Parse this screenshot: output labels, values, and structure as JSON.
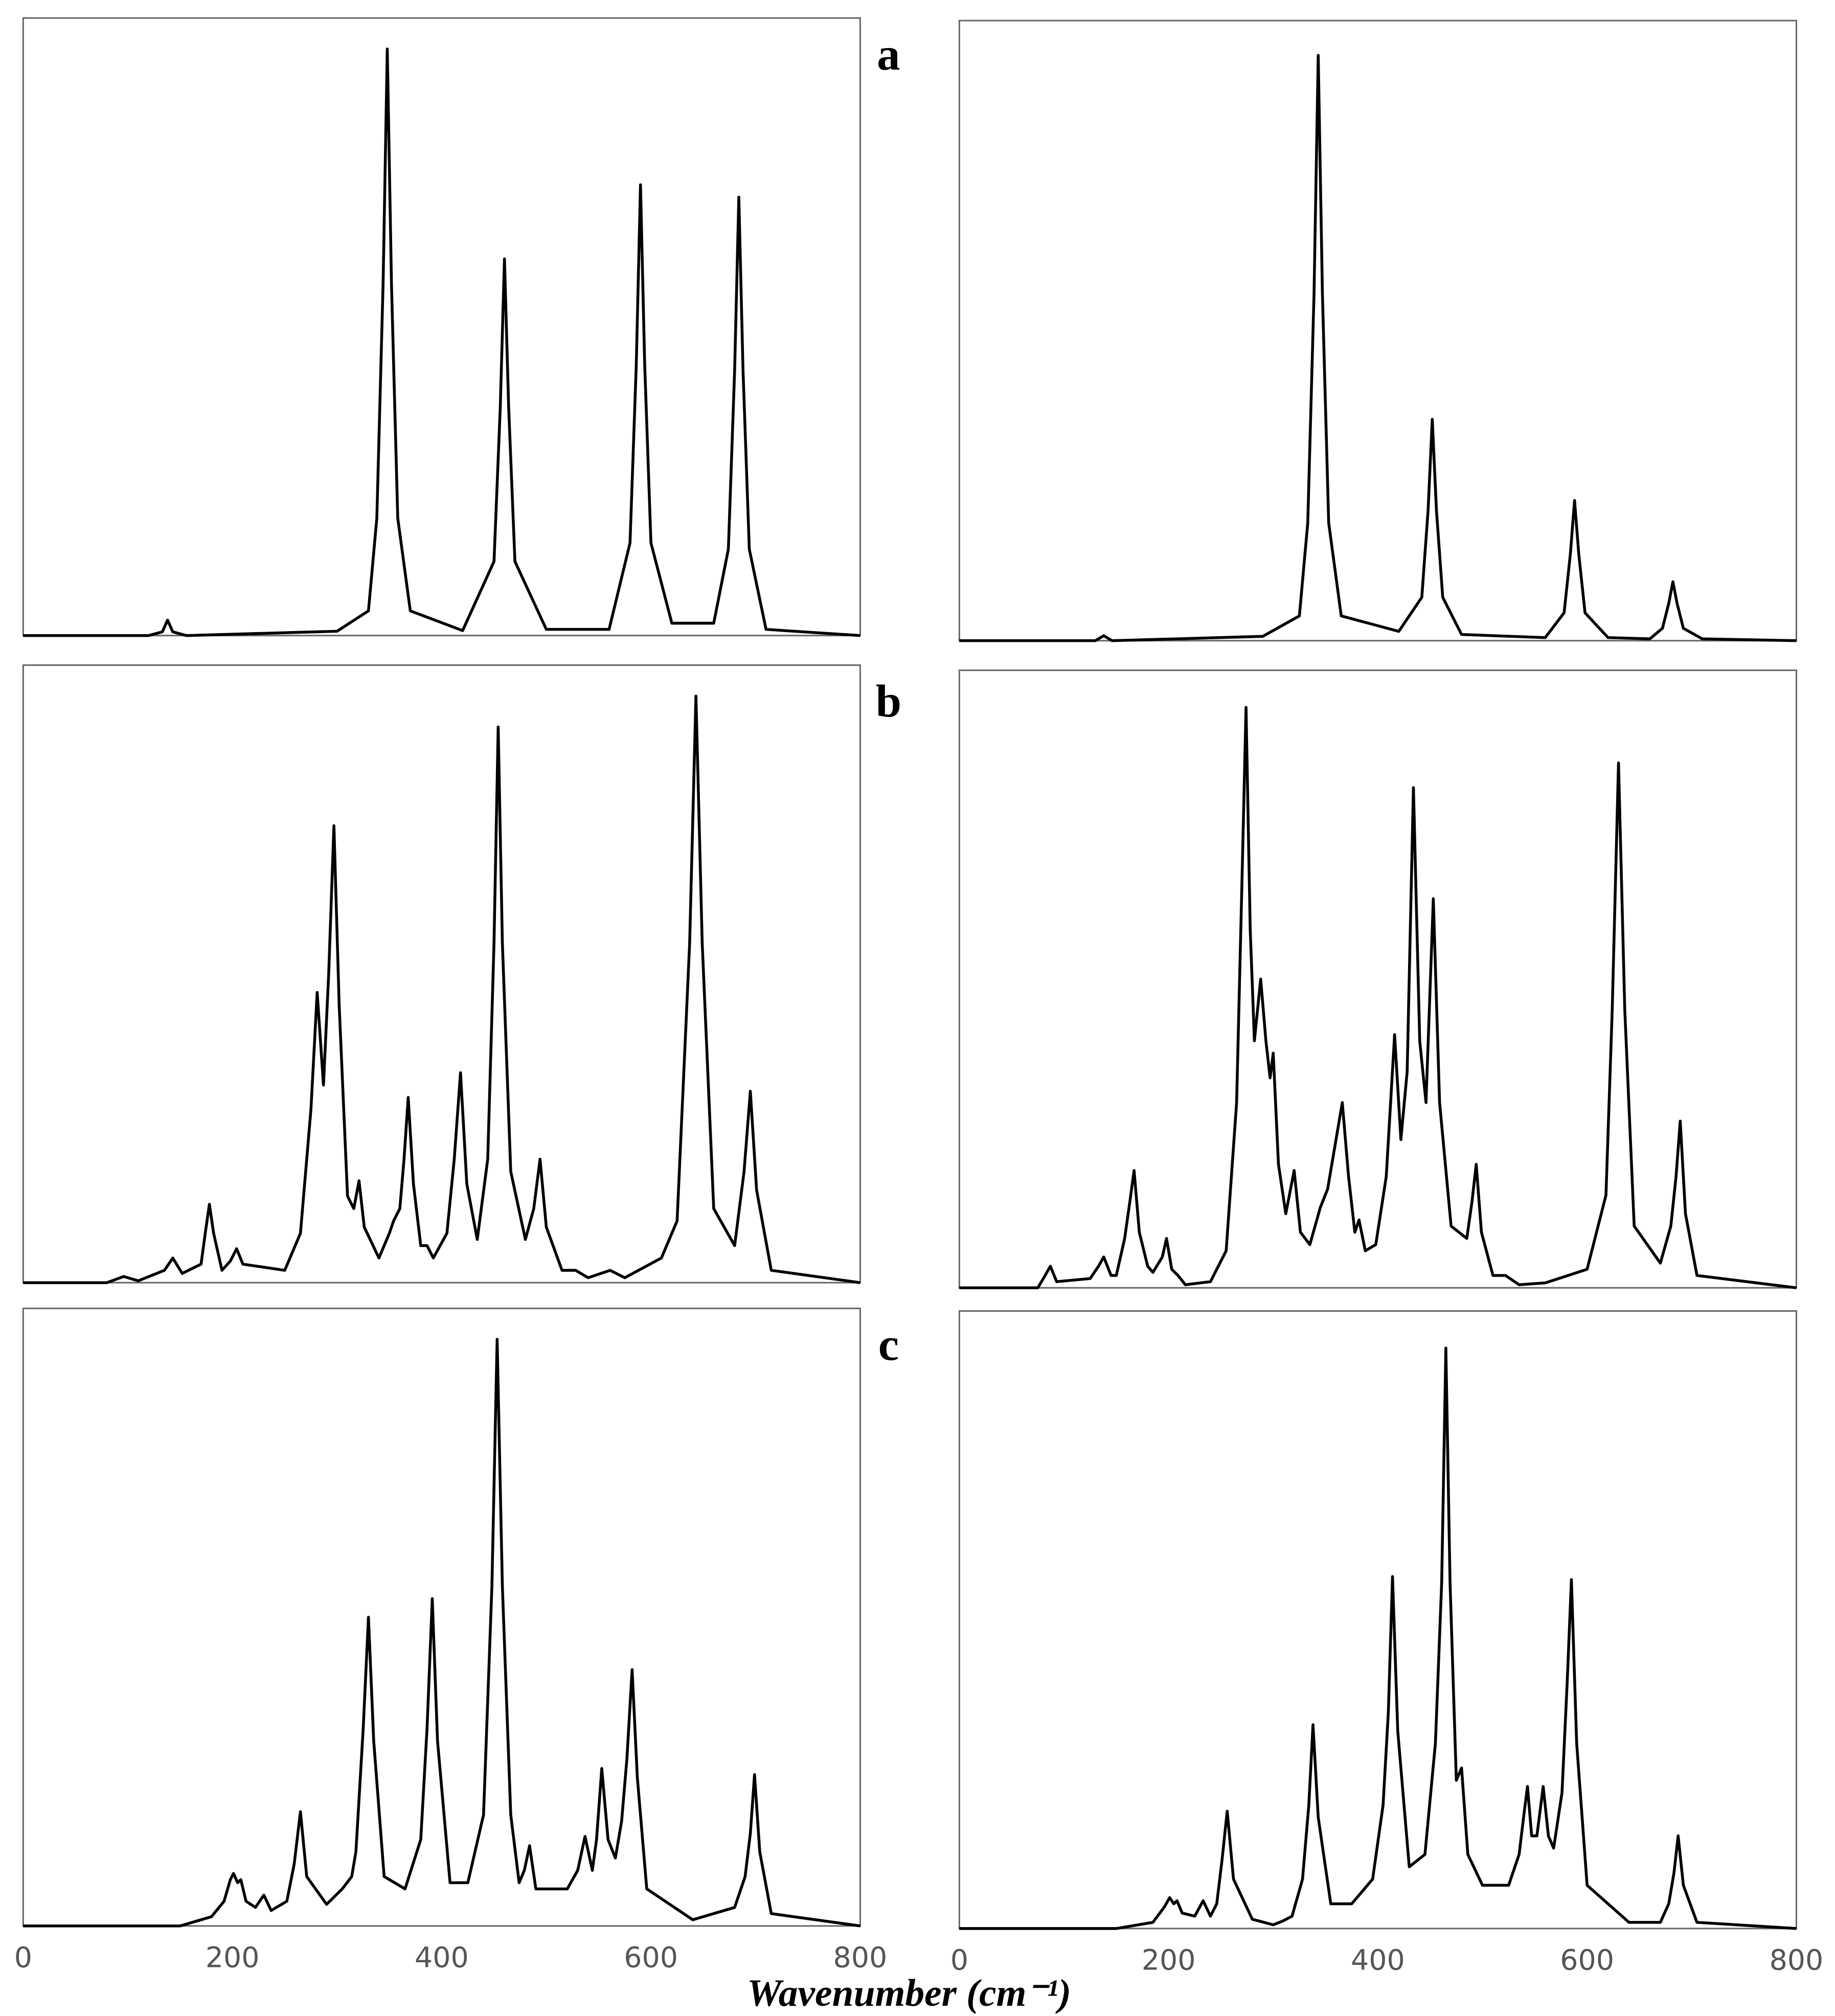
{
  "chart_data": [
    {
      "type": "line",
      "label": "a",
      "xlim": [
        0,
        800
      ],
      "ylim": [
        0,
        100
      ],
      "color": "#000000",
      "x": [
        0,
        120,
        133,
        138,
        143,
        156,
        300,
        330,
        338,
        344,
        348,
        352,
        358,
        370,
        420,
        450,
        456,
        460,
        464,
        470,
        500,
        560,
        580,
        586,
        590,
        594,
        600,
        620,
        660,
        674,
        680,
        684,
        688,
        694,
        710,
        800
      ],
      "values": [
        0,
        0,
        0.6,
        2.5,
        0.6,
        0,
        0.7,
        4,
        19,
        57,
        95,
        57,
        19,
        4,
        0.8,
        12,
        37,
        61,
        37,
        12,
        1,
        1,
        15,
        44,
        73,
        44,
        15,
        2,
        2,
        14,
        43,
        71,
        43,
        14,
        1,
        0
      ]
    },
    {
      "type": "line",
      "xlim": [
        0,
        800
      ],
      "ylim": [
        0,
        100
      ],
      "color": "#000000",
      "x": [
        0,
        130,
        138,
        146,
        290,
        325,
        333,
        339,
        343,
        347,
        353,
        365,
        420,
        442,
        448,
        452,
        456,
        462,
        480,
        560,
        578,
        584,
        588,
        592,
        598,
        620,
        660,
        672,
        678,
        682,
        686,
        692,
        710,
        800
      ],
      "values": [
        0,
        0,
        0.8,
        0,
        0.7,
        4,
        19,
        56,
        94.4,
        56,
        19,
        4,
        1.5,
        7,
        21,
        35.7,
        21,
        7,
        1,
        0.5,
        4.5,
        14,
        22.6,
        14,
        4.5,
        0.5,
        0.3,
        2,
        6,
        9.5,
        6,
        2,
        0.3,
        0
      ]
    },
    {
      "type": "line",
      "label": "b",
      "xlim": [
        0,
        800
      ],
      "ylim": [
        0,
        100
      ],
      "color": "#000000",
      "x": [
        0,
        80,
        96,
        110,
        135,
        143,
        152,
        170,
        174,
        178,
        182,
        190,
        198,
        204,
        210,
        250,
        265,
        275,
        281,
        287,
        292,
        297,
        302,
        310,
        316,
        321,
        326,
        340,
        350,
        354,
        360,
        364,
        368,
        373,
        380,
        386,
        392,
        405,
        412,
        418,
        424,
        434,
        444,
        450,
        454,
        458,
        466,
        480,
        488,
        494,
        500,
        515,
        528,
        540,
        561,
        575,
        610,
        625,
        637,
        643,
        649,
        660,
        680,
        689,
        695,
        701,
        715,
        800
      ],
      "values": [
        0,
        0,
        1,
        0.3,
        2,
        4,
        1.5,
        3,
        8,
        12.7,
        8,
        2,
        3.5,
        5.5,
        3,
        2,
        8,
        28,
        47,
        32,
        50,
        74,
        45,
        14,
        12,
        16.5,
        9,
        4,
        8,
        10,
        12,
        20,
        30,
        16,
        6,
        6,
        4,
        8,
        20,
        34,
        16,
        7,
        20,
        55,
        90,
        55,
        18,
        7,
        12,
        20,
        9,
        2,
        2,
        0.8,
        2,
        0.8,
        4,
        10,
        55,
        95,
        55,
        12,
        6,
        18,
        31,
        15,
        2,
        0
      ]
    },
    {
      "type": "line",
      "xlim": [
        0,
        800
      ],
      "ylim": [
        0,
        100
      ],
      "color": "#000000",
      "x": [
        0,
        75,
        82,
        87,
        93,
        125,
        133,
        138,
        145,
        150,
        158,
        163,
        167,
        172,
        180,
        185,
        194,
        198,
        203,
        209,
        216,
        240,
        255,
        265,
        270,
        274,
        278,
        282,
        288,
        293,
        297,
        300,
        305,
        312,
        320,
        326,
        335,
        345,
        352,
        358,
        366,
        372,
        378,
        382,
        388,
        398,
        408,
        416,
        422,
        428,
        434,
        440,
        446,
        453,
        459,
        470,
        485,
        490,
        494,
        499,
        510,
        522,
        535,
        560,
        600,
        618,
        624,
        630,
        636,
        645,
        670,
        680,
        685,
        689,
        694,
        705,
        800
      ],
      "values": [
        0,
        0,
        2,
        3.5,
        1,
        1.5,
        3.5,
        5,
        2,
        2,
        8,
        14,
        19,
        9,
        3.5,
        2.5,
        5,
        8,
        3,
        2,
        0.5,
        1,
        6,
        30,
        65,
        94,
        58,
        40,
        50,
        40,
        34,
        38,
        20,
        12,
        19,
        9,
        7,
        13,
        16,
        22,
        30,
        18,
        9,
        11,
        6,
        7,
        18,
        41,
        24,
        35,
        81,
        40,
        30,
        63,
        30,
        10,
        8,
        14,
        20,
        9,
        2,
        2,
        0.5,
        0.8,
        3,
        15,
        45,
        85,
        45,
        10,
        4,
        10,
        18,
        27,
        12,
        2,
        0
      ]
    },
    {
      "type": "line",
      "label": "c",
      "xlabel": "Wavenumber (cm⁻¹)",
      "xlim": [
        0,
        800
      ],
      "ylim": [
        0,
        100
      ],
      "xticks": [
        0,
        200,
        400,
        600,
        800
      ],
      "color": "#000000",
      "x": [
        0,
        150,
        180,
        192,
        198,
        201,
        205,
        208,
        213,
        222,
        230,
        237,
        252,
        259,
        265,
        271,
        290,
        305,
        314,
        318,
        325,
        330,
        335,
        345,
        365,
        380,
        386,
        391,
        396,
        408,
        425,
        440,
        448,
        453,
        458,
        466,
        474,
        479,
        484,
        490,
        520,
        530,
        537,
        544,
        548,
        553,
        559,
        566,
        572,
        577,
        582,
        587,
        596,
        640,
        680,
        690,
        695,
        699,
        704,
        715,
        800
      ],
      "values": [
        0,
        0,
        1.5,
        4,
        7.5,
        8.5,
        7,
        7.5,
        4,
        3,
        5,
        2.5,
        4,
        10,
        18.5,
        8,
        3.5,
        6,
        8,
        12,
        32,
        50,
        30,
        8,
        6,
        14,
        32,
        53,
        30,
        7,
        7,
        18,
        55,
        95,
        55,
        18,
        7,
        9,
        13,
        6,
        6,
        9,
        14.5,
        9,
        14,
        25.5,
        14,
        11,
        17,
        27,
        41.5,
        24,
        6,
        1,
        3,
        8,
        15,
        24.5,
        12,
        2,
        0
      ]
    },
    {
      "type": "line",
      "xlim": [
        0,
        800
      ],
      "ylim": [
        0,
        100
      ],
      "xticks": [
        0,
        200,
        400,
        600,
        800
      ],
      "color": "#000000",
      "x": [
        0,
        150,
        185,
        196,
        201,
        205,
        208,
        213,
        225,
        233,
        240,
        246,
        251,
        256,
        262,
        280,
        300,
        309,
        318,
        328,
        334,
        338,
        343,
        355,
        375,
        395,
        405,
        410,
        414,
        419,
        430,
        445,
        455,
        461,
        465,
        469,
        475,
        480,
        486,
        500,
        525,
        535,
        540,
        543,
        547,
        552,
        558,
        563,
        568,
        576,
        581,
        585,
        590,
        600,
        640,
        670,
        678,
        683,
        687,
        692,
        705,
        800
      ],
      "values": [
        0,
        0,
        1,
        3.5,
        5,
        4,
        4.5,
        2.5,
        2,
        4.5,
        2,
        4,
        11,
        19,
        8,
        1.5,
        0.6,
        1.2,
        2,
        8,
        20,
        33,
        18,
        4,
        4,
        8,
        20,
        35,
        57,
        32,
        10,
        12,
        30,
        56,
        94,
        56,
        24,
        26,
        12,
        7,
        7,
        12,
        19,
        23,
        15,
        15,
        23,
        15,
        13,
        22,
        40,
        56.5,
        30,
        7,
        1,
        1,
        4,
        9,
        15,
        7,
        1,
        0
      ]
    }
  ]
}
